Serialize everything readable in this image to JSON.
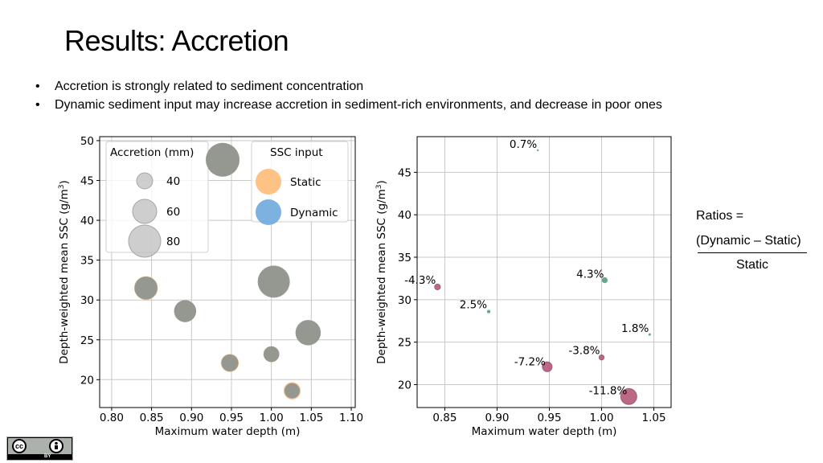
{
  "slide": {
    "title": "Results: Accretion",
    "bullets": [
      "Accretion is strongly related to sediment concentration",
      "Dynamic sediment input may increase accretion in sediment-rich environments, and decrease in poor ones"
    ],
    "ratio": {
      "label": "Ratios =",
      "numerator": "(Dynamic – Static)",
      "denominator": "Static"
    },
    "license": {
      "icon": "cc-by-icon",
      "text": "BY"
    }
  },
  "chart_data": [
    {
      "type": "scatter",
      "xlabel": "Maximum water depth (m)",
      "ylabel": "Depth-weighted mean SSC (g/m³)",
      "xlim": [
        0.785,
        1.105
      ],
      "ylim": [
        16.5,
        50.5
      ],
      "xticks": [
        0.8,
        0.85,
        0.9,
        0.95,
        1.0,
        1.05,
        1.1
      ],
      "xtick_labels": [
        "0.80",
        "0.85",
        "0.90",
        "0.95",
        "1.00",
        "1.05",
        "1.10"
      ],
      "yticks": [
        20,
        25,
        30,
        35,
        40,
        45,
        50
      ],
      "ytick_labels": [
        "20",
        "25",
        "30",
        "35",
        "40",
        "45",
        "50"
      ],
      "grid": true,
      "size_legend": {
        "title": "Accretion (mm)",
        "placement": "top-left",
        "entries": [
          {
            "label": "40",
            "value": 40
          },
          {
            "label": "60",
            "value": 60
          },
          {
            "label": "80",
            "value": 80
          }
        ]
      },
      "color_legend": {
        "title": "SSC input",
        "placement": "top-center",
        "entries": [
          {
            "label": "Static",
            "color": "#ffbb78"
          },
          {
            "label": "Dynamic",
            "color": "#6fa8dc"
          }
        ]
      },
      "series": [
        {
          "name": "Static",
          "color": "#ffbb78",
          "points": [
            {
              "x": 0.843,
              "y": 31.5,
              "accretion": 59
            },
            {
              "x": 0.892,
              "y": 28.6,
              "accretion": 54
            },
            {
              "x": 0.939,
              "y": 47.6,
              "accretion": 84
            },
            {
              "x": 0.948,
              "y": 22.1,
              "accretion": 45
            },
            {
              "x": 1.0,
              "y": 23.2,
              "accretion": 40
            },
            {
              "x": 1.003,
              "y": 32.3,
              "accretion": 77
            },
            {
              "x": 1.026,
              "y": 18.6,
              "accretion": 43
            },
            {
              "x": 1.046,
              "y": 25.9,
              "accretion": 62
            }
          ]
        },
        {
          "name": "Dynamic",
          "color": "#6fa8dc",
          "points": [
            {
              "x": 0.843,
              "y": 31.5,
              "accretion": 57
            },
            {
              "x": 0.892,
              "y": 28.6,
              "accretion": 55
            },
            {
              "x": 0.939,
              "y": 47.6,
              "accretion": 84
            },
            {
              "x": 0.948,
              "y": 22.1,
              "accretion": 42
            },
            {
              "x": 1.0,
              "y": 23.2,
              "accretion": 39
            },
            {
              "x": 1.003,
              "y": 32.3,
              "accretion": 80
            },
            {
              "x": 1.026,
              "y": 18.6,
              "accretion": 38
            },
            {
              "x": 1.046,
              "y": 25.9,
              "accretion": 63
            }
          ]
        }
      ]
    },
    {
      "type": "scatter",
      "xlabel": "Maximum water depth (m)",
      "ylabel": "Depth-weighted mean SSC (g/m³)",
      "xlim": [
        0.8235,
        1.0665
      ],
      "ylim": [
        17.3,
        49.2
      ],
      "xticks": [
        0.85,
        0.9,
        0.95,
        1.0,
        1.05
      ],
      "xtick_labels": [
        "0.85",
        "0.90",
        "0.95",
        "1.00",
        "1.05"
      ],
      "yticks": [
        20,
        25,
        30,
        35,
        40,
        45
      ],
      "ytick_labels": [
        "20",
        "25",
        "30",
        "35",
        "40",
        "45"
      ],
      "grid": true,
      "points": [
        {
          "x": 0.843,
          "y": 31.5,
          "ratio": -4.3,
          "label": "-4.3%",
          "color": "#b5587a"
        },
        {
          "x": 0.892,
          "y": 28.6,
          "ratio": 2.5,
          "label": "2.5%",
          "color": "#52a07a"
        },
        {
          "x": 0.939,
          "y": 47.6,
          "ratio": 0.7,
          "label": "0.7%",
          "color": "#52a07a"
        },
        {
          "x": 0.948,
          "y": 22.1,
          "ratio": -7.2,
          "label": "-7.2%",
          "color": "#b5587a"
        },
        {
          "x": 1.0,
          "y": 23.2,
          "ratio": -3.8,
          "label": "-3.8%",
          "color": "#b5587a"
        },
        {
          "x": 1.003,
          "y": 32.3,
          "ratio": 4.3,
          "label": "4.3%",
          "color": "#52a07a"
        },
        {
          "x": 1.026,
          "y": 18.6,
          "ratio": -11.8,
          "label": "-11.8%",
          "color": "#b5587a"
        },
        {
          "x": 1.046,
          "y": 25.9,
          "ratio": 1.8,
          "label": "1.8%",
          "color": "#52a07a"
        }
      ]
    }
  ]
}
